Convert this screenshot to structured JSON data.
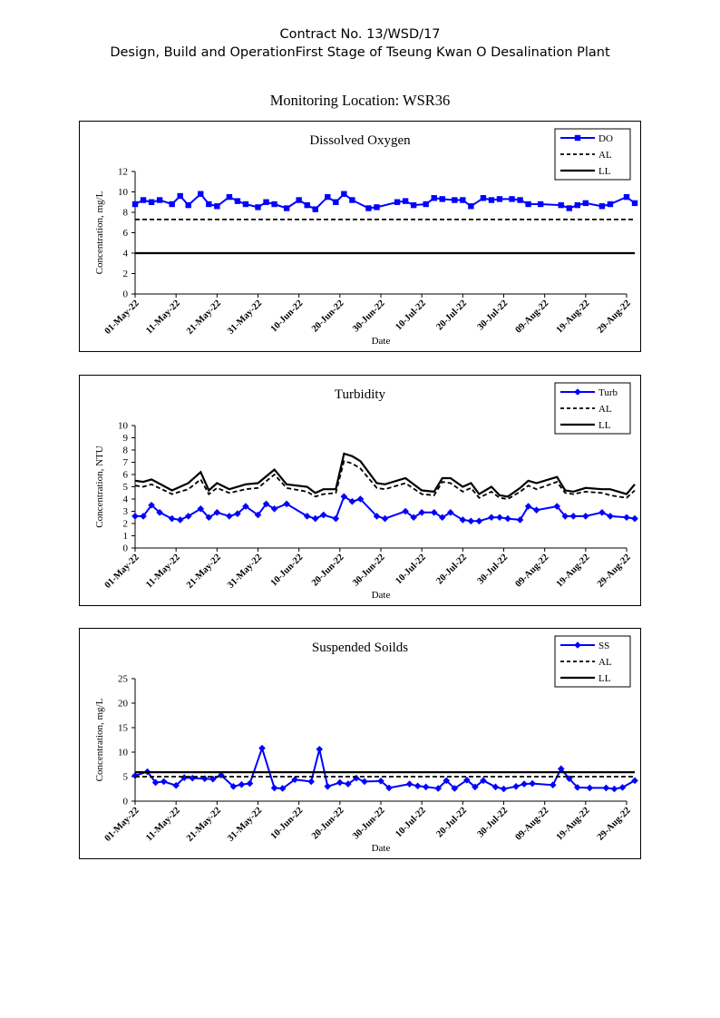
{
  "header": {
    "line1": "Contract No. 13/WSD/17",
    "line2": "Design, Build and OperationFirst Stage  of Tseung Kwan O Desalination Plant",
    "location": "Monitoring Location: WSR36"
  },
  "colors": {
    "series": "#0000ff",
    "limits": "#000000"
  },
  "chart_data": [
    {
      "type": "line",
      "title": "Dissolved Oxygen",
      "xlabel": "Date",
      "ylabel": "Concentration, mg/L",
      "ylim": [
        0,
        12
      ],
      "yticks": [
        0,
        2,
        4,
        6,
        8,
        10,
        12
      ],
      "xlim": [
        "2022-05-01",
        "2022-08-29"
      ],
      "xtick_labels": [
        "01-May-22",
        "11-May-22",
        "21-May-22",
        "31-May-22",
        "10-Jun-22",
        "20-Jun-22",
        "30-Jun-22",
        "10-Jul-22",
        "20-Jul-22",
        "30-Jul-22",
        "09-Aug-22",
        "19-Aug-22",
        "29-Aug-22"
      ],
      "legend_position": "top-right",
      "series": [
        {
          "name": "DO",
          "marker": "square",
          "x": [
            "2022-05-01",
            "2022-05-03",
            "2022-05-05",
            "2022-05-07",
            "2022-05-10",
            "2022-05-12",
            "2022-05-14",
            "2022-05-17",
            "2022-05-19",
            "2022-05-21",
            "2022-05-24",
            "2022-05-26",
            "2022-05-28",
            "2022-05-31",
            "2022-06-02",
            "2022-06-04",
            "2022-06-07",
            "2022-06-10",
            "2022-06-12",
            "2022-06-14",
            "2022-06-17",
            "2022-06-19",
            "2022-06-21",
            "2022-06-23",
            "2022-06-27",
            "2022-06-29",
            "2022-07-04",
            "2022-07-06",
            "2022-07-08",
            "2022-07-11",
            "2022-07-13",
            "2022-07-15",
            "2022-07-18",
            "2022-07-20",
            "2022-07-22",
            "2022-07-25",
            "2022-07-27",
            "2022-07-29",
            "2022-08-01",
            "2022-08-03",
            "2022-08-05",
            "2022-08-08",
            "2022-08-13",
            "2022-08-15",
            "2022-08-17",
            "2022-08-19",
            "2022-08-23",
            "2022-08-25",
            "2022-08-29",
            "2022-08-31"
          ],
          "y": [
            8.8,
            9.2,
            9.0,
            9.2,
            8.8,
            9.6,
            8.7,
            9.8,
            8.8,
            8.6,
            9.5,
            9.1,
            8.8,
            8.5,
            9.0,
            8.8,
            8.4,
            9.2,
            8.7,
            8.3,
            9.5,
            9.0,
            9.8,
            9.2,
            8.4,
            8.5,
            9.0,
            9.1,
            8.7,
            8.8,
            9.4,
            9.3,
            9.2,
            9.2,
            8.6,
            9.4,
            9.2,
            9.3,
            9.3,
            9.2,
            8.8,
            8.8,
            8.7,
            8.4,
            8.7,
            8.9,
            8.6,
            8.8,
            9.5,
            8.9
          ]
        },
        {
          "name": "AL",
          "style": "dashed",
          "x": [
            "2022-05-01",
            "2022-08-31"
          ],
          "y": [
            7.3,
            7.3
          ]
        },
        {
          "name": "LL",
          "style": "solid",
          "x": [
            "2022-05-01",
            "2022-08-31"
          ],
          "y": [
            4.0,
            4.0
          ]
        }
      ]
    },
    {
      "type": "line",
      "title": "Turbidity",
      "xlabel": "Date",
      "ylabel": "Concentration, NTU",
      "ylim": [
        0,
        10
      ],
      "yticks": [
        0,
        1,
        2,
        3,
        4,
        5,
        6,
        7,
        8,
        9,
        10
      ],
      "xlim": [
        "2022-05-01",
        "2022-08-29"
      ],
      "xtick_labels": [
        "01-May-22",
        "11-May-22",
        "21-May-22",
        "31-May-22",
        "10-Jun-22",
        "20-Jun-22",
        "30-Jun-22",
        "10-Jul-22",
        "20-Jul-22",
        "30-Jul-22",
        "09-Aug-22",
        "19-Aug-22",
        "29-Aug-22"
      ],
      "legend_position": "top-right",
      "series": [
        {
          "name": "Turb",
          "marker": "diamond",
          "x": [
            "2022-05-01",
            "2022-05-03",
            "2022-05-05",
            "2022-05-07",
            "2022-05-10",
            "2022-05-12",
            "2022-05-14",
            "2022-05-17",
            "2022-05-19",
            "2022-05-21",
            "2022-05-24",
            "2022-05-26",
            "2022-05-28",
            "2022-05-31",
            "2022-06-02",
            "2022-06-04",
            "2022-06-07",
            "2022-06-12",
            "2022-06-14",
            "2022-06-16",
            "2022-06-19",
            "2022-06-21",
            "2022-06-23",
            "2022-06-25",
            "2022-06-29",
            "2022-07-01",
            "2022-07-06",
            "2022-07-08",
            "2022-07-10",
            "2022-07-13",
            "2022-07-15",
            "2022-07-17",
            "2022-07-20",
            "2022-07-22",
            "2022-07-24",
            "2022-07-27",
            "2022-07-29",
            "2022-07-31",
            "2022-08-03",
            "2022-08-05",
            "2022-08-07",
            "2022-08-12",
            "2022-08-14",
            "2022-08-16",
            "2022-08-19",
            "2022-08-23",
            "2022-08-25",
            "2022-08-29",
            "2022-08-31"
          ],
          "y": [
            2.6,
            2.6,
            3.5,
            2.9,
            2.4,
            2.3,
            2.6,
            3.2,
            2.5,
            2.9,
            2.6,
            2.8,
            3.4,
            2.7,
            3.6,
            3.2,
            3.6,
            2.6,
            2.4,
            2.7,
            2.4,
            4.2,
            3.8,
            4.0,
            2.6,
            2.4,
            3.0,
            2.5,
            2.9,
            2.9,
            2.5,
            2.9,
            2.3,
            2.2,
            2.2,
            2.5,
            2.5,
            2.4,
            2.3,
            3.4,
            3.1,
            3.4,
            2.6,
            2.6,
            2.6,
            2.9,
            2.6,
            2.5,
            2.4
          ]
        },
        {
          "name": "AL",
          "style": "dashed",
          "x": [
            "2022-05-01",
            "2022-05-03",
            "2022-05-05",
            "2022-05-10",
            "2022-05-14",
            "2022-05-17",
            "2022-05-19",
            "2022-05-21",
            "2022-05-24",
            "2022-05-28",
            "2022-05-31",
            "2022-06-04",
            "2022-06-07",
            "2022-06-12",
            "2022-06-14",
            "2022-06-16",
            "2022-06-19",
            "2022-06-21",
            "2022-06-23",
            "2022-06-25",
            "2022-06-29",
            "2022-07-01",
            "2022-07-06",
            "2022-07-10",
            "2022-07-13",
            "2022-07-15",
            "2022-07-17",
            "2022-07-20",
            "2022-07-22",
            "2022-07-24",
            "2022-07-27",
            "2022-07-29",
            "2022-07-31",
            "2022-08-03",
            "2022-08-05",
            "2022-08-07",
            "2022-08-12",
            "2022-08-14",
            "2022-08-16",
            "2022-08-19",
            "2022-08-23",
            "2022-08-25",
            "2022-08-29",
            "2022-08-31"
          ],
          "y": [
            5.1,
            5.0,
            5.2,
            4.4,
            4.8,
            5.6,
            4.4,
            4.9,
            4.5,
            4.8,
            4.9,
            6.0,
            4.9,
            4.6,
            4.2,
            4.4,
            4.5,
            7.1,
            6.9,
            6.5,
            4.9,
            4.8,
            5.3,
            4.4,
            4.3,
            5.4,
            5.3,
            4.6,
            4.9,
            4.1,
            4.6,
            4.1,
            4.0,
            4.6,
            5.1,
            4.8,
            5.4,
            4.5,
            4.4,
            4.6,
            4.5,
            4.3,
            4.1,
            4.7
          ]
        },
        {
          "name": "LL",
          "style": "solid",
          "x": [
            "2022-05-01",
            "2022-05-03",
            "2022-05-05",
            "2022-05-10",
            "2022-05-14",
            "2022-05-17",
            "2022-05-19",
            "2022-05-21",
            "2022-05-24",
            "2022-05-28",
            "2022-05-31",
            "2022-06-04",
            "2022-06-07",
            "2022-06-12",
            "2022-06-14",
            "2022-06-16",
            "2022-06-19",
            "2022-06-21",
            "2022-06-23",
            "2022-06-25",
            "2022-06-29",
            "2022-07-01",
            "2022-07-06",
            "2022-07-10",
            "2022-07-13",
            "2022-07-15",
            "2022-07-17",
            "2022-07-20",
            "2022-07-22",
            "2022-07-24",
            "2022-07-27",
            "2022-07-29",
            "2022-07-31",
            "2022-08-03",
            "2022-08-05",
            "2022-08-07",
            "2022-08-12",
            "2022-08-14",
            "2022-08-16",
            "2022-08-19",
            "2022-08-23",
            "2022-08-25",
            "2022-08-29",
            "2022-08-31"
          ],
          "y": [
            5.5,
            5.4,
            5.6,
            4.7,
            5.3,
            6.2,
            4.7,
            5.3,
            4.8,
            5.2,
            5.3,
            6.4,
            5.2,
            5.0,
            4.5,
            4.8,
            4.8,
            7.7,
            7.5,
            7.1,
            5.3,
            5.2,
            5.7,
            4.7,
            4.6,
            5.7,
            5.7,
            5.0,
            5.3,
            4.4,
            5.0,
            4.3,
            4.2,
            4.9,
            5.5,
            5.3,
            5.8,
            4.7,
            4.6,
            4.9,
            4.8,
            4.8,
            4.4,
            5.2
          ]
        }
      ]
    },
    {
      "type": "line",
      "title": "Suspended Soilds",
      "xlabel": "Date",
      "ylabel": "Concentration, mg/L",
      "ylim": [
        0,
        25
      ],
      "yticks": [
        0,
        5,
        10,
        15,
        20,
        25
      ],
      "xlim": [
        "2022-05-01",
        "2022-08-29"
      ],
      "xtick_labels": [
        "01-May-22",
        "11-May-22",
        "21-May-22",
        "31-May-22",
        "10-Jun-22",
        "20-Jun-22",
        "30-Jun-22",
        "10-Jul-22",
        "20-Jul-22",
        "30-Jul-22",
        "09-Aug-22",
        "19-Aug-22",
        "29-Aug-22"
      ],
      "legend_position": "top-right",
      "series": [
        {
          "name": "SS",
          "marker": "diamond",
          "x": [
            "2022-05-01",
            "2022-05-04",
            "2022-05-06",
            "2022-05-08",
            "2022-05-11",
            "2022-05-13",
            "2022-05-15",
            "2022-05-18",
            "2022-05-20",
            "2022-05-22",
            "2022-05-25",
            "2022-05-27",
            "2022-05-29",
            "2022-06-01",
            "2022-06-04",
            "2022-06-06",
            "2022-06-09",
            "2022-06-13",
            "2022-06-15",
            "2022-06-17",
            "2022-06-20",
            "2022-06-22",
            "2022-06-24",
            "2022-06-26",
            "2022-06-30",
            "2022-07-02",
            "2022-07-07",
            "2022-07-09",
            "2022-07-11",
            "2022-07-14",
            "2022-07-16",
            "2022-07-18",
            "2022-07-21",
            "2022-07-23",
            "2022-07-25",
            "2022-07-28",
            "2022-07-30",
            "2022-08-02",
            "2022-08-04",
            "2022-08-06",
            "2022-08-11",
            "2022-08-13",
            "2022-08-15",
            "2022-08-17",
            "2022-08-20",
            "2022-08-24",
            "2022-08-26",
            "2022-08-28",
            "2022-08-31"
          ],
          "y": [
            5.2,
            6.0,
            3.8,
            4.0,
            3.2,
            4.8,
            4.7,
            4.6,
            4.5,
            5.3,
            3.0,
            3.4,
            3.6,
            10.8,
            2.7,
            2.6,
            4.4,
            4.0,
            10.6,
            3.0,
            3.8,
            3.5,
            4.7,
            4.0,
            4.1,
            2.7,
            3.5,
            3.1,
            2.9,
            2.6,
            4.2,
            2.6,
            4.3,
            2.9,
            4.2,
            2.9,
            2.5,
            3.0,
            3.5,
            3.6,
            3.3,
            6.6,
            4.6,
            2.8,
            2.7,
            2.7,
            2.5,
            2.8,
            4.2
          ]
        },
        {
          "name": "AL",
          "style": "dashed",
          "x": [
            "2022-05-01",
            "2022-08-31"
          ],
          "y": [
            5.0,
            5.0
          ]
        },
        {
          "name": "LL",
          "style": "solid",
          "x": [
            "2022-05-01",
            "2022-08-31"
          ],
          "y": [
            5.9,
            5.9
          ]
        }
      ]
    }
  ]
}
